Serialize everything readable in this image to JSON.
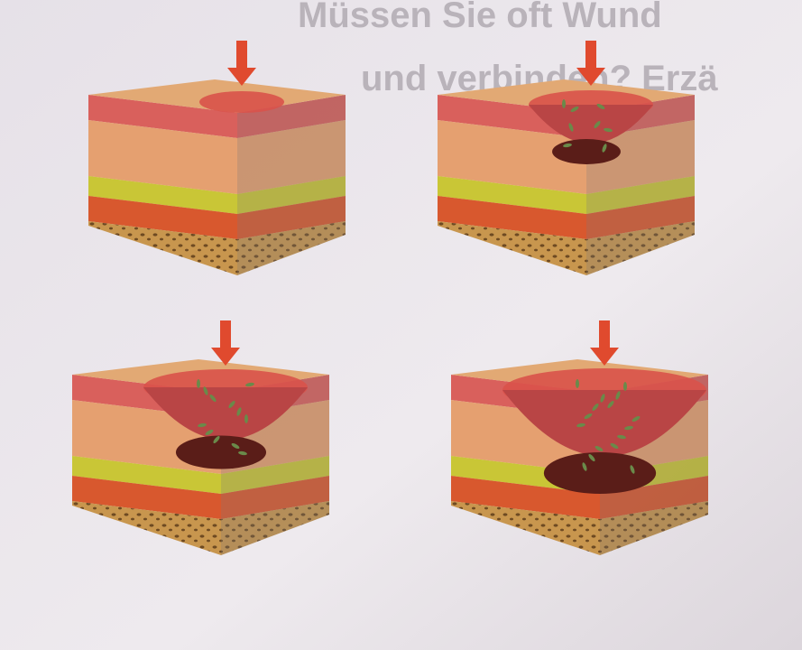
{
  "header": {
    "line1": "Müssen Sie oft Wund",
    "line2": "und verbinden? Erzä"
  }
}
